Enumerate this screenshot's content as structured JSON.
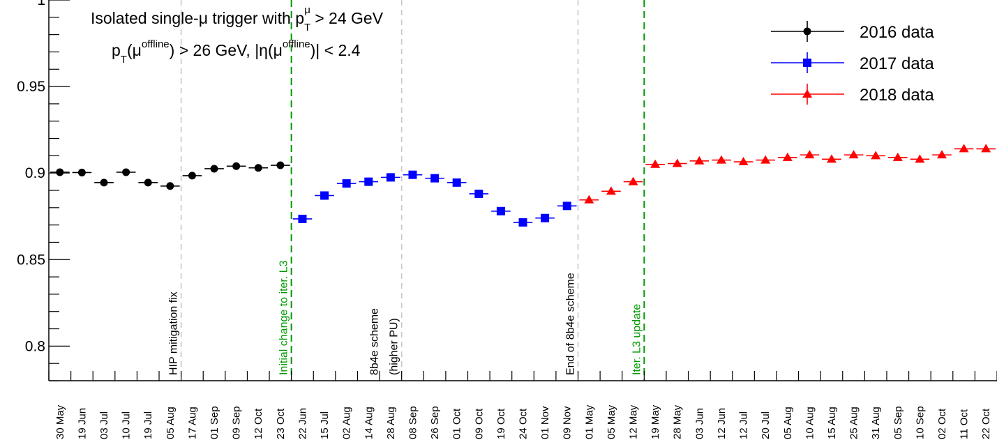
{
  "chart_data": {
    "type": "scatter",
    "title_lines": {
      "line1_prefix": "Isolated single-μ trigger with p",
      "line1_sub": "T",
      "line1_sup": "μ",
      "line1_suffix": " > 24 GeV",
      "line2": [
        {
          "t": "p"
        },
        {
          "t": "T",
          "sub": true
        },
        {
          "t": "(μ"
        },
        {
          "t": "offline",
          "sup": true
        },
        {
          "t": ") > 26 GeV, |η(μ"
        },
        {
          "t": "offline",
          "sup": true
        },
        {
          "t": ")| < 2.4"
        }
      ]
    },
    "xlabel": "",
    "ylabel": "",
    "ylim": [
      0.78,
      1.0
    ],
    "y_major_ticks": [
      0.8,
      0.85,
      0.9,
      0.95,
      1.0
    ],
    "y_tick_labels": [
      "0.8",
      "0.85",
      "0.9",
      "0.95",
      "1"
    ],
    "y_minor_step": 0.01,
    "categories": [
      "30 May",
      "19 Jun",
      "03 Jul",
      "10 Jul",
      "19 Jul",
      "05 Aug",
      "17 Aug",
      "01 Sep",
      "09 Sep",
      "12 Oct",
      "23 Oct",
      "22 Jun",
      "15 Jul",
      "02 Aug",
      "14 Aug",
      "28 Aug",
      "08 Sep",
      "26 Sep",
      "01 Oct",
      "09 Oct",
      "19 Oct",
      "24 Oct",
      "01 Nov",
      "09 Nov",
      "01 May",
      "05 May",
      "12 May",
      "19 May",
      "28 May",
      "03 Jun",
      "12 Jun",
      "12 Jul",
      "20 Jul",
      "05 Aug",
      "10 Aug",
      "15 Aug",
      "25 Aug",
      "31 Aug",
      "05 Sep",
      "10 Sep",
      "02 Oct",
      "11 Oct",
      "22 Oct"
    ],
    "series": [
      {
        "name": "2016 data",
        "color": "#000000",
        "marker": "circle",
        "start": 0,
        "values": [
          0.9005,
          0.9003,
          0.8945,
          0.9005,
          0.8945,
          0.8925,
          0.8985,
          0.9025,
          0.904,
          0.903,
          0.9045
        ]
      },
      {
        "name": "2017 data",
        "color": "#0000ff",
        "marker": "square",
        "start": 11,
        "values": [
          0.8735,
          0.887,
          0.894,
          0.895,
          0.8975,
          0.899,
          0.897,
          0.8945,
          0.888,
          0.878,
          0.8715,
          0.874,
          0.881
        ]
      },
      {
        "name": "2018 data",
        "color": "#ff0000",
        "marker": "triangle",
        "start": 24,
        "values": [
          0.8845,
          0.8895,
          0.895,
          0.905,
          0.9055,
          0.907,
          0.9075,
          0.9065,
          0.9075,
          0.909,
          0.9105,
          0.908,
          0.9105,
          0.91,
          0.909,
          0.908,
          0.9105,
          0.914,
          0.914
        ]
      }
    ],
    "annotations": [
      {
        "text": "HIP mitigation fix",
        "after_index": 5,
        "style": "grey-dashed"
      },
      {
        "text": "Initial change to iter. L3",
        "after_index": 10,
        "style": "green-dashed"
      },
      {
        "text": "8b4e scheme",
        "after_index": 15,
        "style": "grey-dashed"
      },
      {
        "text": "(higher PU)",
        "after_index": 15,
        "style": "none"
      },
      {
        "text": "End of 8b4e scheme",
        "after_index": 23,
        "style": "grey-dashed"
      },
      {
        "text": "Iter. L3 update",
        "after_index": 26,
        "style": "green-dashed"
      }
    ],
    "legend_position": "top-right",
    "grid": false,
    "colors": {
      "grey_line": "#c8c8c8",
      "green_line": "#009900",
      "green_text": "#009900"
    }
  }
}
